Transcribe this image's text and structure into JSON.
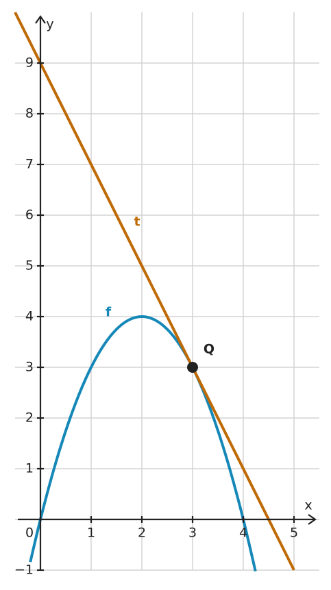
{
  "chart_data": {
    "type": "function",
    "x_label": "x",
    "y_label": "y",
    "xlim": [
      -0.5,
      5.5
    ],
    "ylim": [
      -1,
      10
    ],
    "xticks": [
      0,
      1,
      2,
      3,
      4,
      5
    ],
    "yticks": [
      {
        "value": -1,
        "label": "−1"
      },
      0,
      1,
      2,
      3,
      4,
      5,
      6,
      7,
      8,
      9
    ],
    "grid": true,
    "series": [
      {
        "name": "f",
        "color": "#1588b8",
        "x": [
          -0.2,
          0,
          0.25,
          0.5,
          0.75,
          1,
          1.25,
          1.5,
          1.75,
          2,
          2.25,
          2.5,
          2.75,
          3,
          3.25,
          3.5,
          3.75,
          4,
          4.24
        ],
        "values": [
          -0.84,
          0,
          0.9375,
          1.75,
          2.4375,
          3,
          3.4375,
          3.75,
          3.9375,
          4,
          3.9375,
          3.75,
          3.4375,
          3,
          2.4375,
          1.75,
          0.9375,
          0,
          -1.02
        ]
      },
      {
        "name": "t",
        "color": "#c06a05",
        "x": [
          -0.5,
          5
        ],
        "values": [
          10,
          -1
        ]
      }
    ],
    "points": [
      {
        "name": "Q",
        "x": 3,
        "y": 3,
        "color": "#222222"
      }
    ]
  }
}
